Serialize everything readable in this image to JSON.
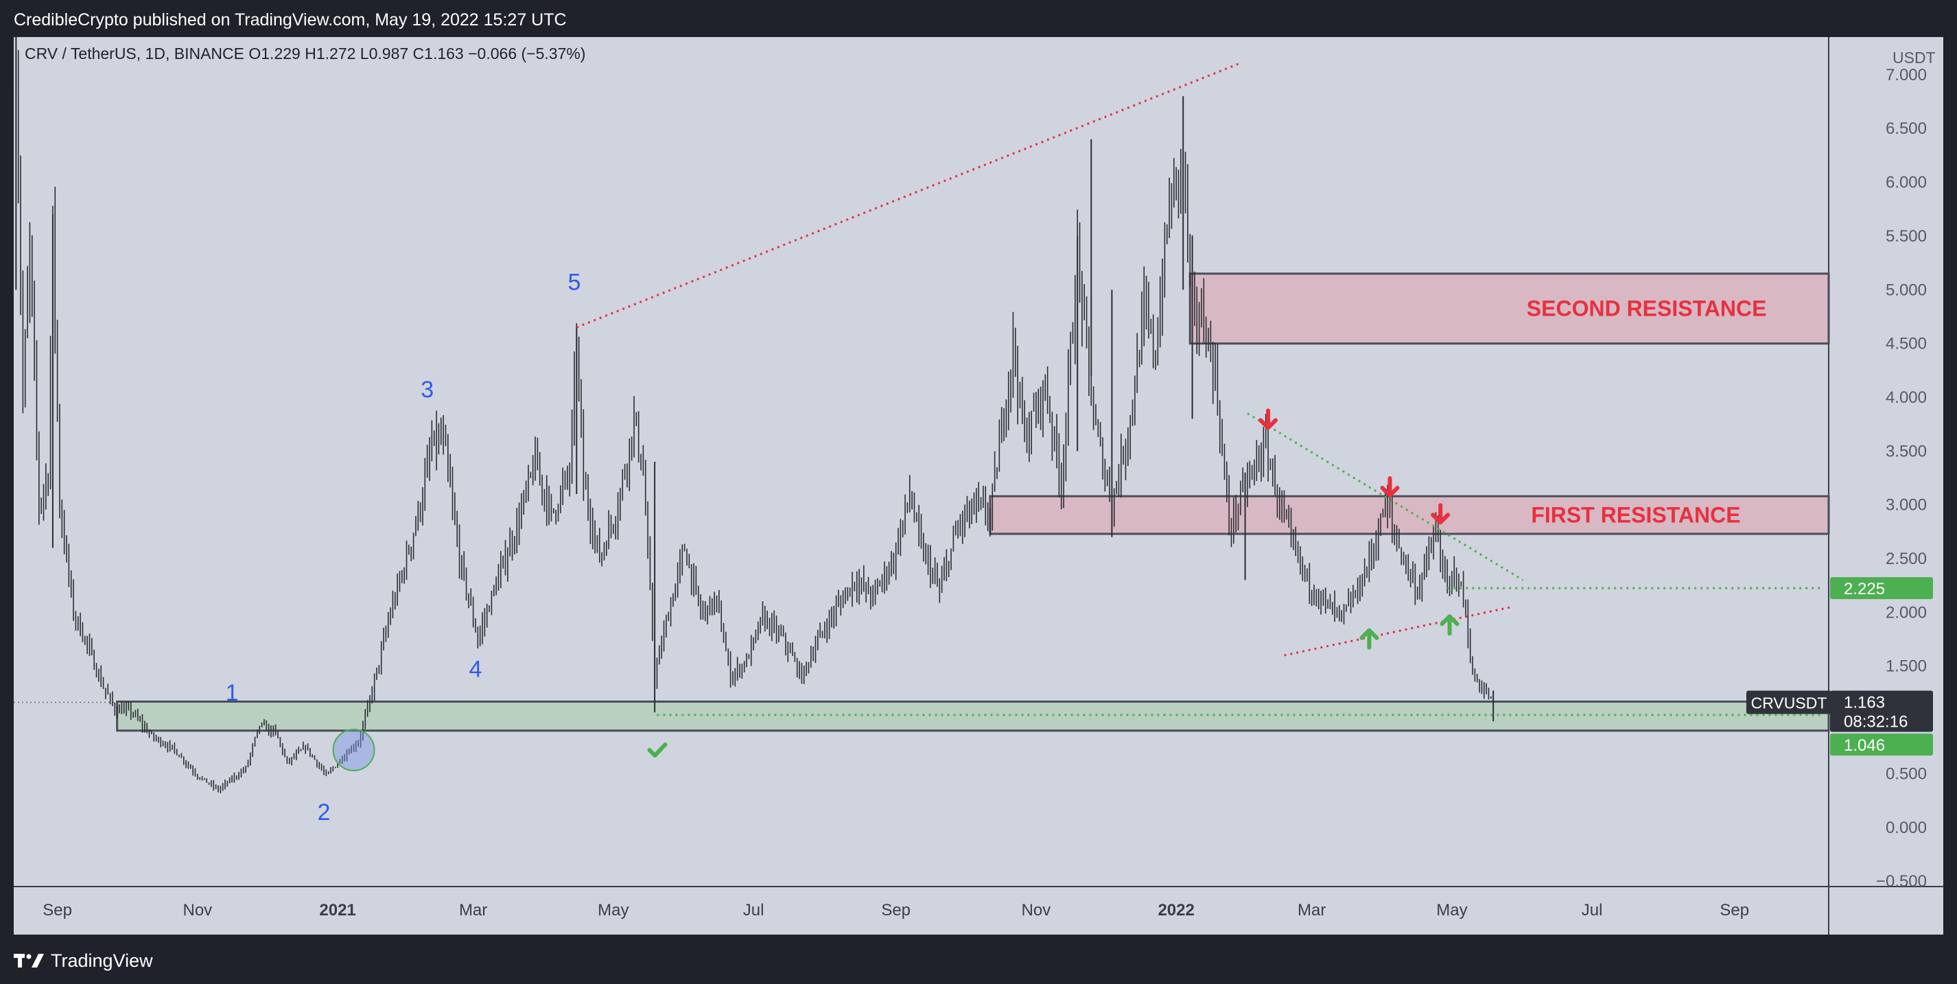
{
  "header": {
    "publish_line": "CredibleCrypto published on TradingView.com, May 19, 2022 15:27 UTC"
  },
  "footer": {
    "brand": "TradingView"
  },
  "chart_data": {
    "type": "candlestick",
    "legend": {
      "symbol": "CRV / TetherUS, 1D, BINANCE",
      "o_label": "O",
      "o_value": "1.229",
      "h_label": "H",
      "h_value": "1.272",
      "l_label": "L",
      "l_value": "0.987",
      "c_label": "C",
      "c_value": "1.163",
      "change": "−0.066 (−5.37%)"
    },
    "currency_label": "USDT",
    "y_ticks": [
      "7.000",
      "6.500",
      "6.000",
      "5.500",
      "5.000",
      "4.500",
      "4.000",
      "3.500",
      "3.000",
      "2.500",
      "2.000",
      "1.500",
      "1.000",
      "0.500",
      "0.000",
      "−0.500"
    ],
    "y_tick_values": [
      7.0,
      6.5,
      6.0,
      5.5,
      5.0,
      4.5,
      4.0,
      3.5,
      3.0,
      2.5,
      2.0,
      1.5,
      1.0,
      0.5,
      0.0,
      -0.5
    ],
    "ylim": [
      -0.55,
      7.35
    ],
    "x_ticks": [
      {
        "label": "Sep",
        "date": "2020-09-01",
        "bold": false
      },
      {
        "label": "Nov",
        "date": "2020-11-01",
        "bold": false
      },
      {
        "label": "2021",
        "date": "2021-01-01",
        "bold": true
      },
      {
        "label": "Mar",
        "date": "2021-03-01",
        "bold": false
      },
      {
        "label": "May",
        "date": "2021-05-01",
        "bold": false
      },
      {
        "label": "Jul",
        "date": "2021-07-01",
        "bold": false
      },
      {
        "label": "Sep",
        "date": "2021-09-01",
        "bold": false
      },
      {
        "label": "Nov",
        "date": "2021-11-01",
        "bold": false
      },
      {
        "label": "2022",
        "date": "2022-01-01",
        "bold": true
      },
      {
        "label": "Mar",
        "date": "2022-03-01",
        "bold": false
      },
      {
        "label": "May",
        "date": "2022-05-01",
        "bold": false
      },
      {
        "label": "Jul",
        "date": "2022-07-01",
        "bold": false
      },
      {
        "label": "Sep",
        "date": "2022-09-01",
        "bold": false
      }
    ],
    "xlim": [
      "2020-08-13",
      "2022-10-12"
    ],
    "price_path": [
      [
        "2020-08-14",
        7.2
      ],
      [
        "2020-08-17",
        4.0
      ],
      [
        "2020-08-20",
        5.4
      ],
      [
        "2020-08-24",
        3.0
      ],
      [
        "2020-08-28",
        3.3
      ],
      [
        "2020-08-30",
        5.6
      ],
      [
        "2020-09-02",
        3.0
      ],
      [
        "2020-09-08",
        2.0
      ],
      [
        "2020-09-14",
        1.7
      ],
      [
        "2020-09-20",
        1.35
      ],
      [
        "2020-09-26",
        1.1
      ],
      [
        "2020-10-03",
        1.08
      ],
      [
        "2020-10-12",
        0.85
      ],
      [
        "2020-10-22",
        0.72
      ],
      [
        "2020-11-01",
        0.48
      ],
      [
        "2020-11-10",
        0.35
      ],
      [
        "2020-11-22",
        0.55
      ],
      [
        "2020-11-28",
        0.95
      ],
      [
        "2020-12-05",
        0.88
      ],
      [
        "2020-12-10",
        0.6
      ],
      [
        "2020-12-18",
        0.75
      ],
      [
        "2020-12-27",
        0.48
      ],
      [
        "2021-01-03",
        0.65
      ],
      [
        "2021-01-10",
        0.8
      ],
      [
        "2021-01-14",
        1.1
      ],
      [
        "2021-01-18",
        1.45
      ],
      [
        "2021-01-24",
        2.0
      ],
      [
        "2021-01-31",
        2.5
      ],
      [
        "2021-02-06",
        3.0
      ],
      [
        "2021-02-11",
        3.55
      ],
      [
        "2021-02-16",
        3.6
      ],
      [
        "2021-02-23",
        2.5
      ],
      [
        "2021-03-03",
        1.75
      ],
      [
        "2021-03-10",
        2.2
      ],
      [
        "2021-03-20",
        2.8
      ],
      [
        "2021-03-28",
        3.4
      ],
      [
        "2021-04-04",
        2.9
      ],
      [
        "2021-04-12",
        3.3
      ],
      [
        "2021-04-15",
        4.5
      ],
      [
        "2021-04-18",
        3.2
      ],
      [
        "2021-04-25",
        2.5
      ],
      [
        "2021-05-03",
        3.0
      ],
      [
        "2021-05-10",
        3.8
      ],
      [
        "2021-05-14",
        3.3
      ],
      [
        "2021-05-19",
        1.4
      ],
      [
        "2021-05-24",
        1.9
      ],
      [
        "2021-06-01",
        2.6
      ],
      [
        "2021-06-08",
        2.0
      ],
      [
        "2021-06-15",
        2.1
      ],
      [
        "2021-06-21",
        1.4
      ],
      [
        "2021-06-28",
        1.55
      ],
      [
        "2021-07-05",
        1.95
      ],
      [
        "2021-07-14",
        1.75
      ],
      [
        "2021-07-22",
        1.4
      ],
      [
        "2021-07-28",
        1.7
      ],
      [
        "2021-08-05",
        2.0
      ],
      [
        "2021-08-14",
        2.3
      ],
      [
        "2021-08-22",
        2.15
      ],
      [
        "2021-08-31",
        2.5
      ],
      [
        "2021-09-07",
        3.1
      ],
      [
        "2021-09-12",
        2.6
      ],
      [
        "2021-09-20",
        2.2
      ],
      [
        "2021-09-28",
        2.8
      ],
      [
        "2021-10-06",
        3.0
      ],
      [
        "2021-10-12",
        2.9
      ],
      [
        "2021-10-22",
        4.5
      ],
      [
        "2021-10-27",
        3.6
      ],
      [
        "2021-11-05",
        4.1
      ],
      [
        "2021-11-12",
        3.2
      ],
      [
        "2021-11-19",
        5.3
      ],
      [
        "2021-11-26",
        3.8
      ],
      [
        "2021-12-04",
        3.0
      ],
      [
        "2021-12-12",
        3.8
      ],
      [
        "2021-12-18",
        4.8
      ],
      [
        "2021-12-23",
        4.4
      ],
      [
        "2021-12-29",
        5.8
      ],
      [
        "2022-01-04",
        6.2
      ],
      [
        "2022-01-08",
        4.8
      ],
      [
        "2022-01-13",
        4.7
      ],
      [
        "2022-01-18",
        4.2
      ],
      [
        "2022-01-24",
        2.8
      ],
      [
        "2022-01-30",
        3.1
      ],
      [
        "2022-02-05",
        3.4
      ],
      [
        "2022-02-09",
        3.55
      ],
      [
        "2022-02-15",
        3.0
      ],
      [
        "2022-02-21",
        2.6
      ],
      [
        "2022-02-27",
        2.3
      ],
      [
        "2022-03-06",
        2.1
      ],
      [
        "2022-03-14",
        1.95
      ],
      [
        "2022-03-21",
        2.2
      ],
      [
        "2022-03-28",
        2.6
      ],
      [
        "2022-04-02",
        3.0
      ],
      [
        "2022-04-08",
        2.6
      ],
      [
        "2022-04-16",
        2.2
      ],
      [
        "2022-04-24",
        2.75
      ],
      [
        "2022-04-29",
        2.2
      ],
      [
        "2022-05-03",
        2.4
      ],
      [
        "2022-05-07",
        2.0
      ],
      [
        "2022-05-10",
        1.4
      ],
      [
        "2022-05-14",
        1.3
      ],
      [
        "2022-05-19",
        1.163
      ]
    ],
    "spikes": [
      {
        "date": "2020-08-14",
        "high": 7.35,
        "low": 5.0
      },
      {
        "date": "2020-08-30",
        "high": 5.7,
        "low": 2.6
      },
      {
        "date": "2021-04-15",
        "high": 4.65,
        "low": 3.1
      },
      {
        "date": "2021-05-19",
        "high": 3.4,
        "low": 1.07
      },
      {
        "date": "2021-11-19",
        "high": 5.5,
        "low": 3.5
      },
      {
        "date": "2021-11-25",
        "high": 6.4,
        "low": 4.2
      },
      {
        "date": "2021-12-04",
        "high": 5.0,
        "low": 2.7
      },
      {
        "date": "2022-01-04",
        "high": 6.8,
        "low": 5.0
      },
      {
        "date": "2022-01-08",
        "high": 5.5,
        "low": 3.8
      },
      {
        "date": "2022-01-31",
        "high": 3.3,
        "low": 2.3
      },
      {
        "date": "2022-05-19",
        "high": 1.272,
        "low": 0.987
      }
    ],
    "zones": [
      {
        "label": "SECOND RESISTANCE",
        "from": "2022-01-07",
        "top": 5.15,
        "bottom": 4.5,
        "fill": "#d8b8c3",
        "text_color": "#e8303f"
      },
      {
        "label": "FIRST RESISTANCE",
        "from": "2021-10-12",
        "top": 3.08,
        "bottom": 2.73,
        "fill": "#d8b8c3",
        "text_color": "#e8303f"
      },
      {
        "label": "",
        "from": "2020-09-27",
        "top": 1.17,
        "bottom": 0.9,
        "fill": "#b9cfc0",
        "text_color": ""
      }
    ],
    "wave_labels": [
      {
        "label": "1",
        "date": "2020-11-16",
        "y": 1.18
      },
      {
        "label": "2",
        "date": "2020-12-26",
        "y": 0.07
      },
      {
        "label": "3",
        "date": "2021-02-09",
        "y": 4.0
      },
      {
        "label": "4",
        "date": "2021-03-02",
        "y": 1.4
      },
      {
        "label": "5",
        "date": "2021-04-14",
        "y": 5.0
      }
    ],
    "trendlines": [
      {
        "from": [
          "2021-04-15",
          4.65
        ],
        "to": [
          "2022-01-28",
          7.1
        ],
        "color": "#e8303f"
      },
      {
        "from": [
          "2022-02-01",
          3.85
        ],
        "to": [
          "2022-06-01",
          2.3
        ],
        "color": "#4caf50"
      },
      {
        "from": [
          "2022-02-17",
          1.6
        ],
        "to": [
          "2022-05-27",
          2.05
        ],
        "color": "#e8303f"
      },
      {
        "from": [
          "2022-04-29",
          2.225
        ],
        "to": [
          "2022-10-09",
          2.225
        ],
        "color": "#4caf50"
      },
      {
        "from": [
          "2021-05-20",
          1.046
        ],
        "to": [
          "2022-10-09",
          1.046
        ],
        "color": "#4caf50"
      }
    ],
    "arrows": [
      {
        "direction": "down",
        "date": "2022-02-10",
        "y": 3.8,
        "color": "#e8303f"
      },
      {
        "direction": "down",
        "date": "2022-04-04",
        "y": 3.17,
        "color": "#e8303f"
      },
      {
        "direction": "down",
        "date": "2022-04-26",
        "y": 2.92,
        "color": "#e8303f"
      },
      {
        "direction": "up",
        "date": "2022-03-26",
        "y": 1.75,
        "color": "#4caf50"
      },
      {
        "direction": "up",
        "date": "2022-04-30",
        "y": 1.88,
        "color": "#4caf50"
      }
    ],
    "checkmark": {
      "date": "2021-05-20",
      "y": 0.72,
      "color": "#4caf50"
    },
    "circle_marker": {
      "date": "2021-01-08",
      "y": 0.72
    },
    "price_labels": [
      {
        "text": "2.225",
        "y": 2.225,
        "bg": "#4caf50",
        "color": "#ffffff"
      },
      {
        "text": "1.046",
        "y": 0.77,
        "bg": "#4caf50",
        "color": "#ffffff"
      }
    ],
    "last_price": {
      "symbol": "CRVUSDT",
      "value": "1.163",
      "countdown": "08:32:16",
      "y": 1.163
    }
  }
}
